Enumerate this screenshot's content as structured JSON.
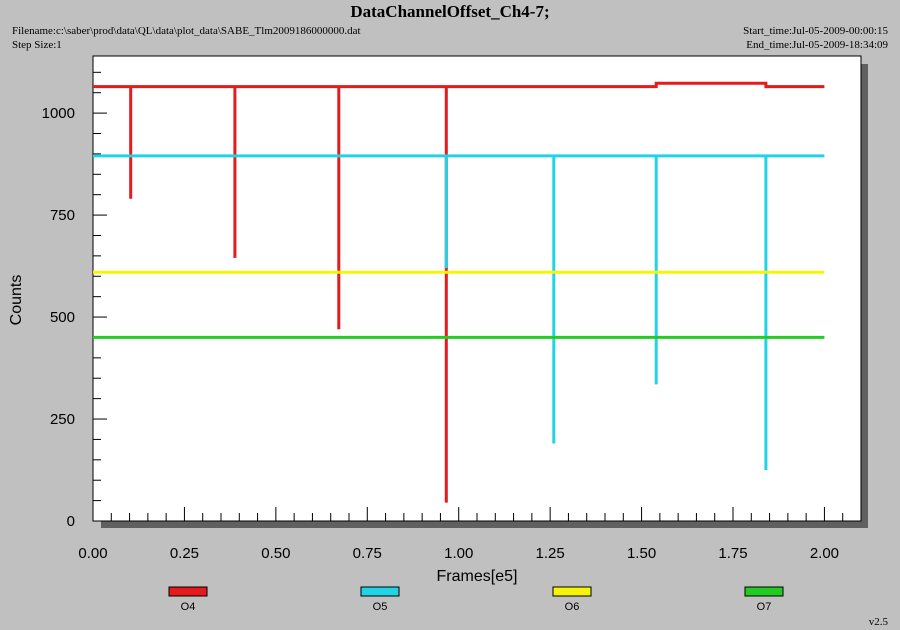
{
  "header": {
    "title": "DataChannelOffset_Ch4-7;",
    "filename": "Filename:c:\\saber\\prod\\data\\QL\\data\\plot_data\\SABE_Tlm2009186000000.dat",
    "step_size": "Step Size:1",
    "start_time": "Start_time:Jul-05-2009-00:00:15",
    "end_time": "End_time:Jul-05-2009-18:34:09"
  },
  "footer": {
    "version": "v2.5"
  },
  "chart_data": {
    "type": "line",
    "title": "DataChannelOffset_Ch4-7;",
    "xlabel": "Frames[e5]",
    "ylabel": "Counts",
    "xlim": [
      0,
      2.1
    ],
    "ylim": [
      0,
      1140
    ],
    "xticks": [
      0.0,
      0.25,
      0.5,
      0.75,
      1.0,
      1.25,
      1.5,
      1.75,
      2.0
    ],
    "xtick_labels": [
      "0.00",
      "0.25",
      "0.50",
      "0.75",
      "1.00",
      "1.25",
      "1.50",
      "1.75",
      "2.00"
    ],
    "yticks": [
      0,
      250,
      500,
      750,
      1000
    ],
    "ytick_labels": [
      "0",
      "250",
      "500",
      "750",
      "1000"
    ],
    "grid": false,
    "legend_position": "bottom",
    "series": [
      {
        "name": "O4",
        "color": "#e41a1c",
        "x": [
          0,
          0.103,
          0.103,
          0.103,
          0.388,
          0.388,
          0.388,
          0.672,
          0.672,
          0.672,
          0.966,
          0.966,
          0.966,
          1.54,
          1.54,
          1.84,
          1.84,
          2.0
        ],
        "y": [
          1065,
          1065,
          790,
          1065,
          1065,
          645,
          1065,
          1065,
          470,
          1065,
          1065,
          45,
          1065,
          1065,
          1073,
          1073,
          1065,
          1065
        ]
      },
      {
        "name": "O5",
        "color": "#22d3e6",
        "x": [
          0,
          0.966,
          0.966,
          0.966,
          1.26,
          1.26,
          1.26,
          1.54,
          1.54,
          1.54,
          1.84,
          1.84,
          1.84,
          2.0
        ],
        "y": [
          895,
          895,
          620,
          895,
          895,
          190,
          895,
          895,
          335,
          895,
          895,
          125,
          895,
          895
        ]
      },
      {
        "name": "O6",
        "color": "#f5f50a",
        "x": [
          0,
          2.0
        ],
        "y": [
          610,
          610
        ]
      },
      {
        "name": "O7",
        "color": "#22cc22",
        "x": [
          0,
          2.0
        ],
        "y": [
          450,
          450
        ]
      }
    ]
  }
}
